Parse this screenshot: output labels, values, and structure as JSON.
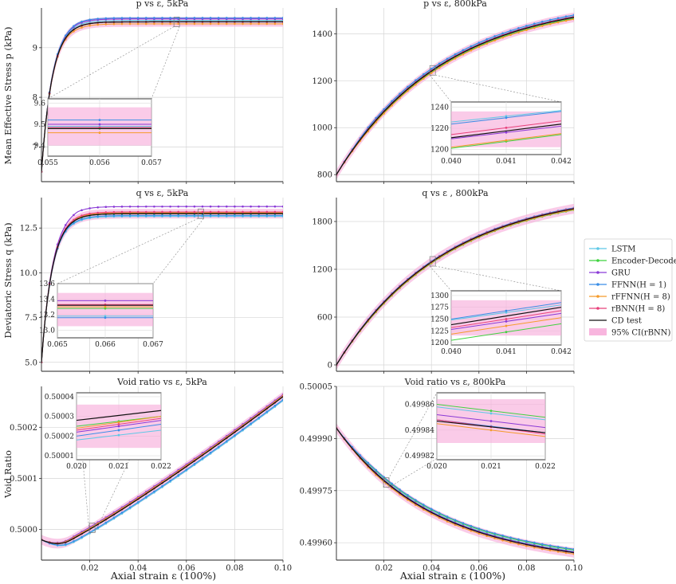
{
  "legend": {
    "entries": [
      {
        "label": "LSTM",
        "color": "#5ec8e6",
        "style": "line"
      },
      {
        "label": "Encoder-Decoder",
        "color": "#3ed23e",
        "style": "line"
      },
      {
        "label": "GRU",
        "color": "#8a3ad6",
        "style": "line"
      },
      {
        "label": "FFNN(H = 1)",
        "color": "#3a8ee6",
        "style": "line"
      },
      {
        "label": "rFFNN(H = 8)",
        "color": "#f59b2b",
        "style": "line"
      },
      {
        "label": "rBNN(H = 8)",
        "color": "#e8407a",
        "style": "line"
      },
      {
        "label": "CD test",
        "color": "#111111",
        "style": "line"
      },
      {
        "label": "95% CI(rBNN)",
        "color": "#f7a8d8",
        "style": "patch"
      }
    ]
  },
  "labels": {
    "x_axis": "Axial strain ε (100%)",
    "y_row1": "Mean Effective Stress p (kPa)",
    "y_row2": "Deviatoric Stress q (kPa)",
    "y_row3": "Void Ratio"
  },
  "chart_data": [
    {
      "id": "p5",
      "type": "line",
      "title": "p vs ε, 5kPa",
      "xlabel": "",
      "ylabel": "Mean Effective Stress p (kPa)",
      "xlim": [
        0,
        0.1
      ],
      "ylim": [
        6.3,
        9.8
      ],
      "xticks": [
        0.02,
        0.04,
        0.06,
        0.08,
        0.1
      ],
      "xticklabels": [],
      "yticks": [
        7,
        8,
        9
      ],
      "yticklabels": [
        "7",
        "8",
        "9"
      ],
      "grid": true,
      "shape": "rise_plateau",
      "start": 6.5,
      "final": 9.52,
      "offsets": {
        "LSTM": 0.03,
        "Encoder-Decoder": 0.0,
        "GRU": 0.06,
        "FFNN(H = 1)": 0.08,
        "rFFNN(H = 8)": -0.04,
        "rBNN(H = 8)": 0.0,
        "CD test": 0.0
      },
      "inset": {
        "xlim": [
          0.055,
          0.057
        ],
        "ylim": [
          9.35,
          9.62
        ],
        "xticks": [
          0.055,
          0.056,
          0.057
        ],
        "xticklabels": [
          "0.055",
          "0.056",
          "0.057"
        ],
        "yticks": [
          9.4,
          9.5,
          9.6
        ],
        "yticklabels": [
          "9.4",
          "9.5",
          "9.6"
        ],
        "series": [
          {
            "name": "LSTM",
            "a": 9.49,
            "b": 9.49
          },
          {
            "name": "Encoder-Decoder",
            "a": 9.48,
            "b": 9.48
          },
          {
            "name": "GRU",
            "a": 9.5,
            "b": 9.5
          },
          {
            "name": "FFNN(H = 1)",
            "a": 9.52,
            "b": 9.52
          },
          {
            "name": "rFFNN(H = 8)",
            "a": 9.46,
            "b": 9.46
          },
          {
            "name": "rBNN(H = 8)",
            "a": 9.485,
            "b": 9.485
          },
          {
            "name": "CD test",
            "a": 9.48,
            "b": 9.48
          }
        ],
        "ci": [
          9.4,
          9.58
        ]
      }
    },
    {
      "id": "p800",
      "type": "line",
      "title": "p vs ε, 800kPa",
      "xlabel": "",
      "ylabel": "",
      "xlim": [
        0,
        0.1
      ],
      "ylim": [
        770,
        1510
      ],
      "xticks": [
        0.02,
        0.04,
        0.06,
        0.08,
        0.1
      ],
      "xticklabels": [],
      "yticks": [
        800,
        1000,
        1200,
        1400
      ],
      "yticklabels": [
        "800",
        "1000",
        "1200",
        "1400"
      ],
      "grid": true,
      "shape": "concave",
      "start": 800,
      "final": 1470,
      "offsets": {
        "LSTM": 5,
        "Encoder-Decoder": -5,
        "GRU": 3,
        "FFNN(H = 1)": 10,
        "rFFNN(H = 8)": -8,
        "rBNN(H = 8)": 2,
        "CD test": 0
      },
      "inset": {
        "xlim": [
          0.04,
          0.042
        ],
        "ylim": [
          1195,
          1245
        ],
        "xticks": [
          0.04,
          0.041,
          0.042
        ],
        "xticklabels": [
          "0.040",
          "0.041",
          "0.042"
        ],
        "yticks": [
          1200,
          1220,
          1240
        ],
        "yticklabels": [
          "1200",
          "1220",
          "1240"
        ],
        "series": [
          {
            "name": "LSTM",
            "a": 1226,
            "b": 1237
          },
          {
            "name": "Encoder-Decoder",
            "a": 1201,
            "b": 1214
          },
          {
            "name": "GRU",
            "a": 1210,
            "b": 1222
          },
          {
            "name": "FFNN(H = 1)",
            "a": 1224,
            "b": 1236
          },
          {
            "name": "rFFNN(H = 8)",
            "a": 1202,
            "b": 1215
          },
          {
            "name": "rBNN(H = 8)",
            "a": 1214,
            "b": 1227
          },
          {
            "name": "CD test",
            "a": 1211,
            "b": 1224
          }
        ],
        "ci": [
          1202,
          1236
        ]
      }
    },
    {
      "id": "q5",
      "type": "line",
      "title": "q vs ε, 5kPa",
      "xlabel": "",
      "ylabel": "Deviatoric Stress q (kPa)",
      "xlim": [
        0,
        0.1
      ],
      "ylim": [
        4.5,
        14.2
      ],
      "xticks": [
        0.02,
        0.04,
        0.06,
        0.08,
        0.1
      ],
      "xticklabels": [],
      "yticks": [
        5.0,
        7.5,
        10.0,
        12.5
      ],
      "yticklabels": [
        "5.0",
        "7.5",
        "10.0",
        "12.5"
      ],
      "grid": true,
      "shape": "rise_plateau",
      "start": 5.0,
      "final": 13.3,
      "offsets": {
        "LSTM": -0.15,
        "Encoder-Decoder": 0.0,
        "GRU": 0.4,
        "FFNN(H = 1)": -0.1,
        "rFFNN(H = 8)": 0.05,
        "rBNN(H = 8)": 0.1,
        "CD test": 0.0
      },
      "inset": {
        "xlim": [
          0.065,
          0.067
        ],
        "ylim": [
          12.9,
          13.6
        ],
        "xticks": [
          0.065,
          0.066,
          0.067
        ],
        "xticklabels": [
          "0.065",
          "0.066",
          "0.067"
        ],
        "yticks": [
          13.0,
          13.2,
          13.4,
          13.6
        ],
        "yticklabels": [
          "13.0",
          "13.2",
          "13.4",
          "13.6"
        ],
        "series": [
          {
            "name": "LSTM",
            "a": 13.18,
            "b": 13.18
          },
          {
            "name": "Encoder-Decoder",
            "a": 13.28,
            "b": 13.28
          },
          {
            "name": "GRU",
            "a": 13.38,
            "b": 13.38
          },
          {
            "name": "FFNN(H = 1)",
            "a": 13.16,
            "b": 13.16
          },
          {
            "name": "rFFNN(H = 8)",
            "a": 13.3,
            "b": 13.3
          },
          {
            "name": "rBNN(H = 8)",
            "a": 13.33,
            "b": 13.33
          },
          {
            "name": "CD test",
            "a": 13.32,
            "b": 13.32
          }
        ],
        "ci": [
          13.05,
          13.48
        ]
      }
    },
    {
      "id": "q800",
      "type": "line",
      "title": "q vs ε , 800kPa",
      "xlabel": "",
      "ylabel": "",
      "xlim": [
        0,
        0.1
      ],
      "ylim": [
        -80,
        2100
      ],
      "xticks": [
        0.02,
        0.04,
        0.06,
        0.08,
        0.1
      ],
      "xticklabels": [],
      "yticks": [
        0,
        600,
        1200,
        1800
      ],
      "yticklabels": [
        "0",
        "600",
        "1200",
        "1800"
      ],
      "grid": true,
      "shape": "concave",
      "start": 0,
      "final": 1960,
      "offsets": {
        "LSTM": 10,
        "Encoder-Decoder": -15,
        "GRU": 5,
        "FFNN(H = 1)": 12,
        "rFFNN(H = 8)": -10,
        "rBNN(H = 8)": 5,
        "CD test": 0
      },
      "inset": {
        "xlim": [
          0.04,
          0.042
        ],
        "ylim": [
          1195,
          1310
        ],
        "xticks": [
          0.04,
          0.041,
          0.042
        ],
        "xticklabels": [
          "0.040",
          "0.041",
          "0.042"
        ],
        "yticks": [
          1200,
          1225,
          1250,
          1275,
          1300
        ],
        "yticklabels": [
          "1200",
          "1225",
          "1250",
          "1275",
          "1300"
        ],
        "series": [
          {
            "name": "LSTM",
            "a": 1248,
            "b": 1280
          },
          {
            "name": "Encoder-Decoder",
            "a": 1205,
            "b": 1240
          },
          {
            "name": "GRU",
            "a": 1228,
            "b": 1262
          },
          {
            "name": "FFNN(H = 1)",
            "a": 1250,
            "b": 1285
          },
          {
            "name": "rFFNN(H = 8)",
            "a": 1218,
            "b": 1253
          },
          {
            "name": "rBNN(H = 8)",
            "a": 1232,
            "b": 1268
          },
          {
            "name": "CD test",
            "a": 1238,
            "b": 1275
          }
        ],
        "ci": [
          1215,
          1290
        ]
      }
    },
    {
      "id": "e5",
      "type": "line",
      "title": "Void ratio vs ε, 5kPa",
      "xlabel": "Axial strain ε (100%)",
      "ylabel": "Void Ratio",
      "xlim": [
        0,
        0.1
      ],
      "ylim": [
        0.49994,
        0.50028
      ],
      "xticks": [
        0.02,
        0.04,
        0.06,
        0.08,
        0.1
      ],
      "xticklabels": [
        "0.02",
        "0.04",
        "0.06",
        "0.08",
        "0.10"
      ],
      "yticks": [
        0.5,
        0.5001,
        0.5002
      ],
      "yticklabels": [
        "0.5000",
        "0.5001",
        "0.5002"
      ],
      "grid": true,
      "shape": "valley",
      "start": 0.49998,
      "final": 0.50026,
      "offsets": {
        "LSTM": -8e-06,
        "Encoder-Decoder": 0.0,
        "GRU": 4e-06,
        "FFNN(H = 1)": -6e-06,
        "rFFNN(H = 8)": 2e-06,
        "rBNN(H = 8)": 0.0,
        "CD test": 0.0
      },
      "inset": {
        "xlim": [
          0.02,
          0.022
        ],
        "ylim": [
          0.500008,
          0.500042
        ],
        "xticks": [
          0.02,
          0.021,
          0.022
        ],
        "xticklabels": [
          "0.020",
          "0.021",
          "0.022"
        ],
        "yticks": [
          0.50001,
          0.50002,
          0.50003,
          0.50004
        ],
        "yticklabels": [
          "0.50001",
          "0.50002",
          "0.50003",
          "0.50004"
        ],
        "series": [
          {
            "name": "LSTM",
            "a": 0.500018,
            "b": 0.500023
          },
          {
            "name": "Encoder-Decoder",
            "a": 0.500025,
            "b": 0.50003
          },
          {
            "name": "GRU",
            "a": 0.500022,
            "b": 0.500028
          },
          {
            "name": "FFNN(H = 1)",
            "a": 0.50002,
            "b": 0.500026
          },
          {
            "name": "rFFNN(H = 8)",
            "a": 0.500024,
            "b": 0.50003
          },
          {
            "name": "rBNN(H = 8)",
            "a": 0.500023,
            "b": 0.500029
          },
          {
            "name": "CD test",
            "a": 0.500028,
            "b": 0.500033
          }
        ],
        "ci": [
          0.500014,
          0.500036
        ]
      }
    },
    {
      "id": "e800",
      "type": "line",
      "title": "Void ratio vs ε, 800kPa",
      "xlabel": "Axial strain ε (100%)",
      "ylabel": "",
      "xlim": [
        0,
        0.1
      ],
      "ylim": [
        0.49955,
        0.50005
      ],
      "xticks": [
        0.02,
        0.04,
        0.06,
        0.08,
        0.1
      ],
      "xticklabels": [
        "0.02",
        "0.04",
        "0.06",
        "0.08",
        "0.10"
      ],
      "yticks": [
        0.4996,
        0.49975,
        0.4999,
        0.50005
      ],
      "yticklabels": [
        "0.49960",
        "0.49975",
        "0.49990",
        "0.50005"
      ],
      "grid": true,
      "shape": "decay",
      "start": 0.49993,
      "final": 0.49957,
      "offsets": {
        "LSTM": 4e-06,
        "Encoder-Decoder": 8e-06,
        "GRU": 2e-06,
        "FFNN(H = 1)": 1e-05,
        "rFFNN(H = 8)": -4e-06,
        "rBNN(H = 8)": 0.0,
        "CD test": 0.0
      },
      "inset": {
        "xlim": [
          0.02,
          0.022
        ],
        "ylim": [
          0.499817,
          0.499869
        ],
        "xticks": [
          0.02,
          0.021,
          0.022
        ],
        "xticklabels": [
          "0.020",
          "0.021",
          "0.022"
        ],
        "yticks": [
          0.49982,
          0.49984,
          0.49986
        ],
        "yticklabels": [
          "0.49982",
          "0.49984",
          "0.49986"
        ],
        "series": [
          {
            "name": "LSTM",
            "a": 0.499858,
            "b": 0.499848
          },
          {
            "name": "Encoder-Decoder",
            "a": 0.49986,
            "b": 0.49985
          },
          {
            "name": "GRU",
            "a": 0.499852,
            "b": 0.499842
          },
          {
            "name": "FFNN(H = 1)",
            "a": 0.499848,
            "b": 0.499838
          },
          {
            "name": "rFFNN(H = 8)",
            "a": 0.499845,
            "b": 0.499835
          },
          {
            "name": "rBNN(H = 8)",
            "a": 0.499848,
            "b": 0.499837
          },
          {
            "name": "CD test",
            "a": 0.499847,
            "b": 0.499838
          }
        ],
        "ci": [
          0.49983,
          0.499864
        ]
      }
    }
  ]
}
